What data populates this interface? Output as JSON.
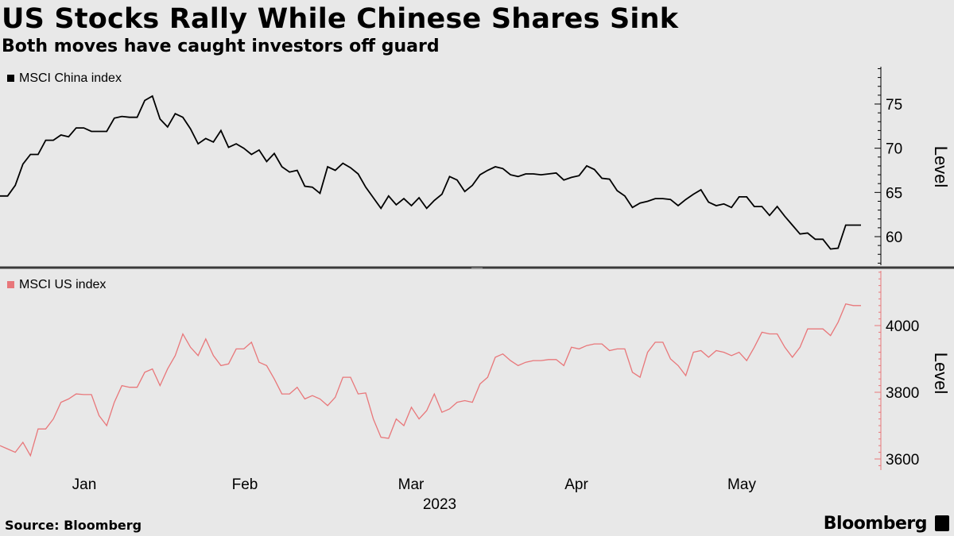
{
  "header": {
    "title": "US Stocks Rally While Chinese Shares Sink",
    "subtitle": "Both moves have caught investors off guard"
  },
  "footer": {
    "source": "Source: Bloomberg",
    "brand": "Bloomberg"
  },
  "colors": {
    "china": "#000000",
    "us": "#e8777a",
    "background": "#e8e8e8"
  },
  "chart_data": [
    {
      "type": "line",
      "series": [
        {
          "name": "MSCI China index",
          "values": [
            64.6,
            64.6,
            65.8,
            68.2,
            69.3,
            69.3,
            70.9,
            70.9,
            71.5,
            71.3,
            72.3,
            72.3,
            71.9,
            71.9,
            71.9,
            73.4,
            73.6,
            73.5,
            73.5,
            75.4,
            75.9,
            73.3,
            72.4,
            73.9,
            73.5,
            72.2,
            70.5,
            71.1,
            70.7,
            72.0,
            70.1,
            70.5,
            70.0,
            69.3,
            69.8,
            68.5,
            69.4,
            67.9,
            67.3,
            67.5,
            65.7,
            65.6,
            64.9,
            67.9,
            67.5,
            68.3,
            67.8,
            67.1,
            65.6,
            64.4,
            63.2,
            64.6,
            63.6,
            64.3,
            63.5,
            64.4,
            63.2,
            64.1,
            64.8,
            66.8,
            66.4,
            65.1,
            65.8,
            67.0,
            67.5,
            67.9,
            67.7,
            67.0,
            66.8,
            67.1,
            67.1,
            67.0,
            67.1,
            67.2,
            66.4,
            66.7,
            66.9,
            68.0,
            67.6,
            66.6,
            66.5,
            65.2,
            64.6,
            63.3,
            63.8,
            64.0,
            64.3,
            64.3,
            64.2,
            63.5,
            64.2,
            64.8,
            65.3,
            63.9,
            63.5,
            63.7,
            63.3,
            64.5,
            64.5,
            63.4,
            63.4,
            62.4,
            63.4,
            62.3,
            61.3,
            60.3,
            60.4,
            59.7,
            59.7,
            58.6,
            58.7,
            61.3,
            61.3,
            61.3
          ]
        }
      ],
      "ylabel": "Level",
      "y_ticks": [
        60,
        65,
        70,
        75
      ],
      "ylim": [
        57,
        79
      ]
    },
    {
      "type": "line",
      "series": [
        {
          "name": "MSCI US index",
          "values": [
            3640,
            3630,
            3620,
            3650,
            3610,
            3690,
            3690,
            3720,
            3770,
            3780,
            3795,
            3793,
            3793,
            3730,
            3700,
            3770,
            3820,
            3815,
            3815,
            3860,
            3870,
            3820,
            3870,
            3910,
            3975,
            3935,
            3910,
            3960,
            3910,
            3880,
            3885,
            3930,
            3930,
            3950,
            3890,
            3880,
            3840,
            3795,
            3795,
            3815,
            3780,
            3790,
            3780,
            3760,
            3785,
            3845,
            3845,
            3795,
            3798,
            3720,
            3665,
            3662,
            3720,
            3700,
            3755,
            3720,
            3745,
            3795,
            3740,
            3750,
            3770,
            3775,
            3770,
            3825,
            3845,
            3905,
            3915,
            3895,
            3880,
            3890,
            3895,
            3895,
            3898,
            3898,
            3880,
            3935,
            3930,
            3940,
            3945,
            3945,
            3925,
            3930,
            3930,
            3860,
            3845,
            3920,
            3950,
            3950,
            3900,
            3880,
            3850,
            3920,
            3925,
            3905,
            3925,
            3920,
            3910,
            3920,
            3895,
            3935,
            3980,
            3975,
            3975,
            3935,
            3905,
            3935,
            3990,
            3990,
            3990,
            3970,
            4010,
            4065,
            4060,
            4060
          ]
        }
      ],
      "ylabel": "Level",
      "y_ticks": [
        3600,
        3800,
        4000
      ],
      "ylim": [
        3560,
        4180
      ],
      "x_tick_labels": [
        "Jan",
        "Feb",
        "Mar",
        "Apr",
        "May"
      ],
      "x_year_label": "2023"
    }
  ]
}
